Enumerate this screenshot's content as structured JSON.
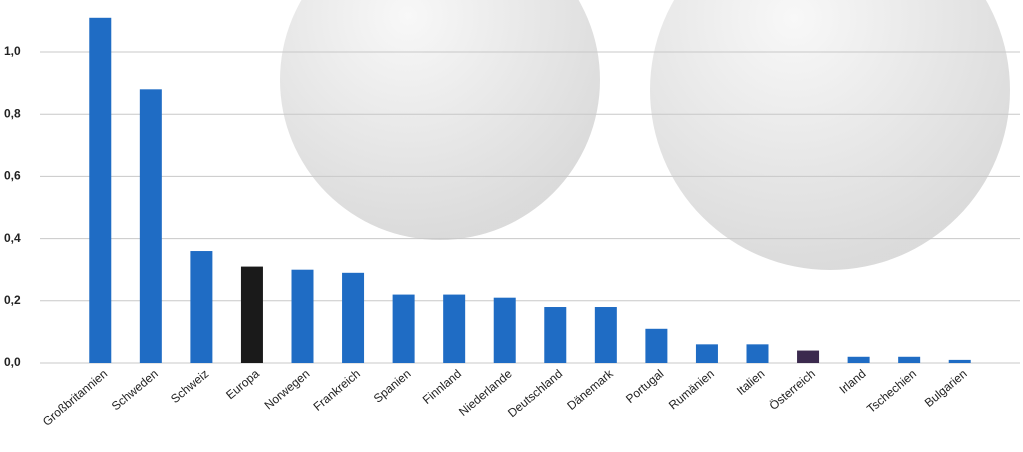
{
  "chart_data": {
    "type": "bar",
    "categories": [
      "Großbritannien",
      "Schweden",
      "Schweiz",
      "Europa",
      "Norwegen",
      "Frankreich",
      "Spanien",
      "Finnland",
      "Niederlande",
      "Deutschland",
      "Dänemark",
      "Portugal",
      "Rumänien",
      "Italien",
      "Österreich",
      "Irland",
      "Tschechien",
      "Bulgarien"
    ],
    "values": [
      1.11,
      0.88,
      0.36,
      0.31,
      0.3,
      0.29,
      0.22,
      0.22,
      0.21,
      0.18,
      0.18,
      0.11,
      0.06,
      0.06,
      0.04,
      0.02,
      0.02,
      0.01
    ],
    "colors": [
      "#1f6cc4",
      "#1f6cc4",
      "#1f6cc4",
      "#1a1a1a",
      "#1f6cc4",
      "#1f6cc4",
      "#1f6cc4",
      "#1f6cc4",
      "#1f6cc4",
      "#1f6cc4",
      "#1f6cc4",
      "#1f6cc4",
      "#1f6cc4",
      "#1f6cc4",
      "#3b2a4e",
      "#1f6cc4",
      "#1f6cc4",
      "#1f6cc4"
    ],
    "ylim": [
      0,
      1.15
    ],
    "yticks": [
      {
        "value": 0,
        "label": "0,0"
      },
      {
        "value": 0.2,
        "label": "0,2"
      },
      {
        "value": 0.4,
        "label": "0,4"
      },
      {
        "value": 0.6,
        "label": "0,6"
      },
      {
        "value": 0.8,
        "label": "0,8"
      },
      {
        "value": 1.0,
        "label": "1,0"
      }
    ],
    "grid": true
  }
}
